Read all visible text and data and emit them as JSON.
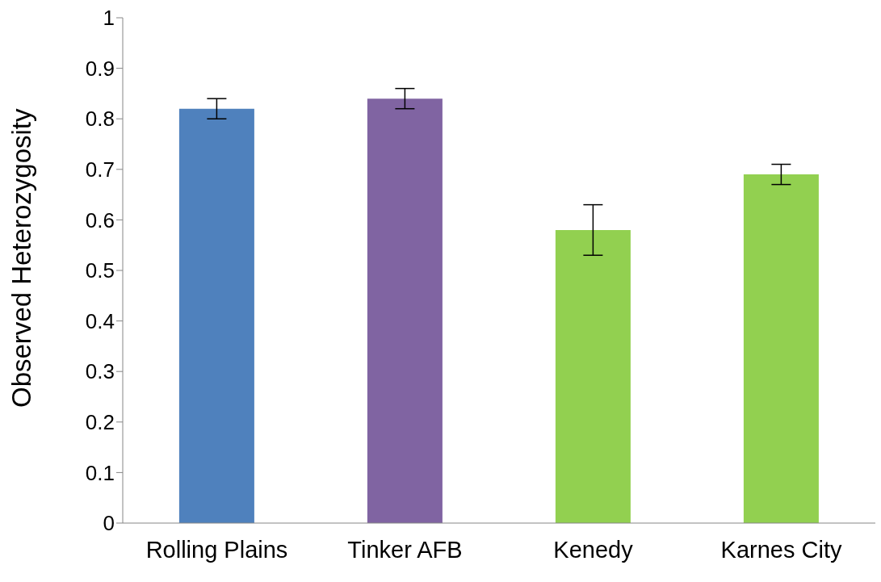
{
  "chart_data": {
    "type": "bar",
    "ylabel": "Observed Heterozygosity",
    "categories": [
      "Rolling Plains",
      "Tinker AFB",
      "Kenedy",
      "Karnes City"
    ],
    "values": [
      0.82,
      0.84,
      0.58,
      0.69
    ],
    "errors": [
      0.02,
      0.02,
      0.05,
      0.02
    ],
    "colors": [
      "#4f81bd",
      "#8064a2",
      "#92d050",
      "#92d050"
    ],
    "ylim": [
      0,
      1
    ],
    "yticks": [
      0,
      0.1,
      0.2,
      0.3,
      0.4,
      0.5,
      0.6,
      0.7,
      0.8,
      0.9,
      1
    ],
    "grid": false,
    "legend": false
  }
}
